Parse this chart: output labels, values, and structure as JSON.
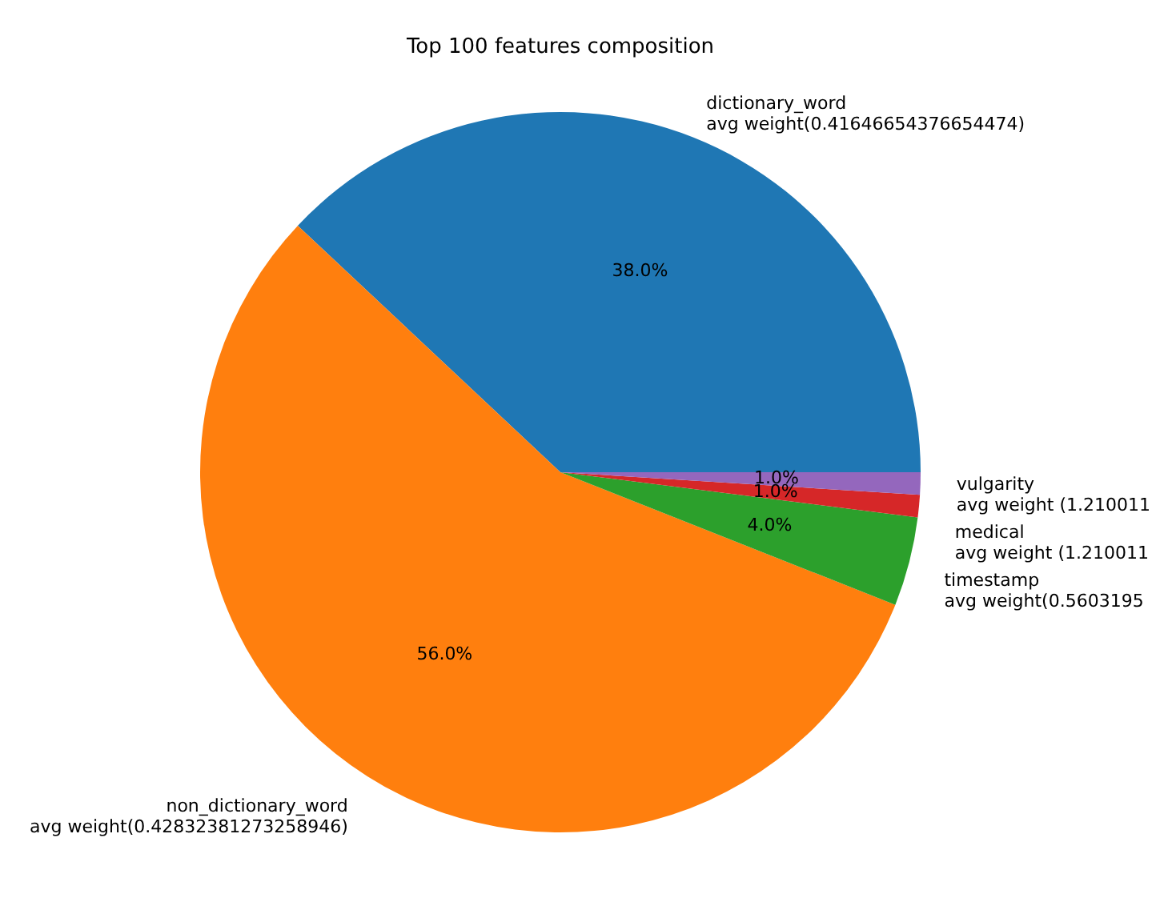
{
  "chart_data": {
    "type": "pie",
    "title": "Top 100 features composition",
    "categories": [
      "dictionary_word\navg weight(0.41646654376654474)",
      "non_dictionary_word\navg weight(0.42832381273258946)",
      "timestamp\navg weight(0.5603195",
      "medical\navg weight (1.210011",
      "vulgarity\navg weight (1.210011"
    ],
    "values": [
      38,
      56,
      4,
      1,
      1
    ],
    "colors": [
      "#1f77b4",
      "#ff7f0e",
      "#2ca02c",
      "#d62728",
      "#9467bd"
    ],
    "value_labels": [
      "38.0%",
      "56.0%",
      "4.0%",
      "1.0%",
      "1.0%"
    ]
  }
}
